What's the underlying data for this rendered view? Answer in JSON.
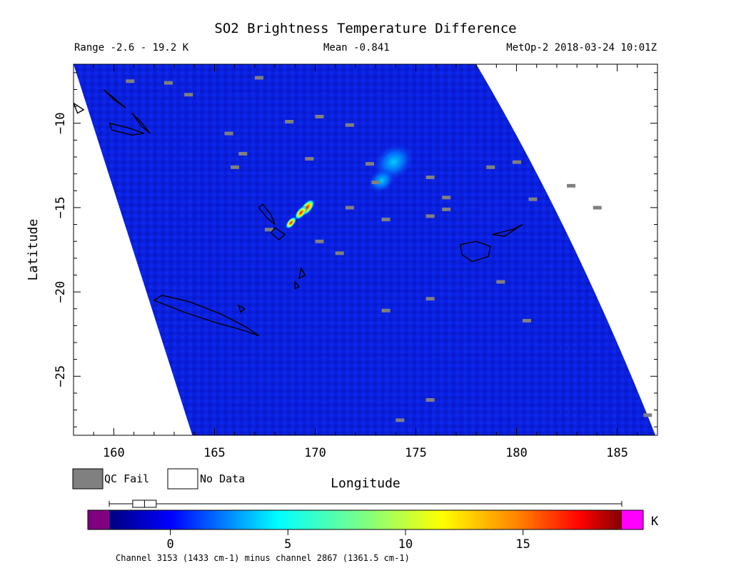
{
  "chart_data": {
    "type": "heatmap",
    "title": "SO2 Brightness Temperature Difference",
    "subtitle_range": "Range -2.6 - 19.2 K",
    "subtitle_mean": "Mean -0.841",
    "subtitle_source": "MetOp-2 2018-03-24 10:01Z",
    "xlabel": "Longitude",
    "ylabel": "Latitude",
    "xlim": [
      158,
      187
    ],
    "ylim": [
      -28.5,
      -6.5
    ],
    "x_ticks": [
      160,
      165,
      170,
      175,
      180,
      185
    ],
    "y_ticks": [
      -10,
      -15,
      -20,
      -25
    ],
    "colorbar": {
      "unit": "K",
      "range": [
        -2.6,
        19.2
      ],
      "ticks": [
        0,
        5,
        10,
        15
      ],
      "under_color": "#800080",
      "over_color": "#ff00ff",
      "caption": "Channel 3153 (1433 cm-1) minus channel 2867 (1361.5 cm-1)",
      "boxplot": {
        "whisker_low": -2.6,
        "q1": -1.6,
        "median": -1.1,
        "q3": -0.6,
        "whisker_high": 19.2
      }
    },
    "legend": [
      {
        "label": "QC Fail",
        "color": "#808080"
      },
      {
        "label": "No Data",
        "color": "#ffffff"
      }
    ],
    "swath": {
      "top_left": [
        158.0,
        -6.5
      ],
      "top_right": [
        178.0,
        -6.5
      ],
      "bottom_left": [
        163.9,
        -28.5
      ],
      "bottom_right": [
        186.9,
        -28.5
      ]
    },
    "background_value": -1.2,
    "so2_features": [
      {
        "name": "plume-core",
        "lon": 169.6,
        "lat": -15.0,
        "value": 19.0
      },
      {
        "name": "plume-mid",
        "lon": 169.3,
        "lat": -15.3,
        "value": 13.0
      },
      {
        "name": "plume-tail",
        "lon": 168.8,
        "lat": -15.9,
        "value": 9.0
      },
      {
        "name": "diffuse-patch",
        "lon": 173.9,
        "lat": -12.3,
        "value": 4.5
      },
      {
        "name": "diffuse-patch-outer",
        "lon": 173.3,
        "lat": -13.4,
        "value": 2.0
      }
    ]
  }
}
